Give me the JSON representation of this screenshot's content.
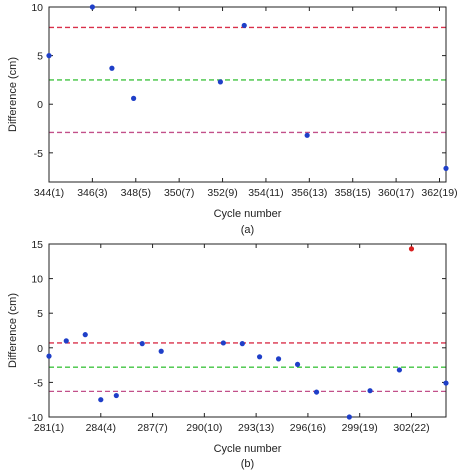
{
  "chart_data": [
    {
      "type": "scatter",
      "caption": "(a)",
      "title": "",
      "xlabel": "Cycle number",
      "ylabel": "Difference (cm)",
      "xlim": [
        344,
        362.3
      ],
      "ylim": [
        -8,
        10
      ],
      "xticks": [
        344,
        346,
        348,
        350,
        352,
        354,
        356,
        358,
        360,
        362
      ],
      "xtick_labels": [
        "344(1)",
        "346(3)",
        "348(5)",
        "350(7)",
        "352(9)",
        "354(11)",
        "356(13)",
        "358(15)",
        "360(17)",
        "362(19)"
      ],
      "yticks": [
        -5,
        0,
        5,
        10
      ],
      "ytick_labels": [
        "-5",
        "0",
        "5",
        "10"
      ],
      "grid": false,
      "reference_lines": [
        {
          "y": 7.9,
          "color": "#d9304a",
          "style": "dashed"
        },
        {
          "y": 2.5,
          "color": "#40c440",
          "style": "dashed"
        },
        {
          "y": -2.9,
          "color": "#c2508a",
          "style": "dashed"
        }
      ],
      "series": [
        {
          "color": "#1f3fc8",
          "points": [
            {
              "x": 344.0,
              "y": 5.0
            },
            {
              "x": 346.0,
              "y": 10.0
            },
            {
              "x": 346.9,
              "y": 3.7
            },
            {
              "x": 347.9,
              "y": 0.6
            },
            {
              "x": 351.9,
              "y": 2.3
            },
            {
              "x": 353.0,
              "y": 8.1
            },
            {
              "x": 355.9,
              "y": -3.2
            },
            {
              "x": 362.3,
              "y": -6.6
            }
          ]
        }
      ]
    },
    {
      "type": "scatter",
      "caption": "(b)",
      "title": "",
      "xlabel": "Cycle number",
      "ylabel": "Difference (cm)",
      "xlim": [
        281,
        304
      ],
      "ylim": [
        -10,
        15
      ],
      "xticks": [
        281,
        284,
        287,
        290,
        293,
        296,
        299,
        302
      ],
      "xtick_labels": [
        "281(1)",
        "284(4)",
        "287(7)",
        "290(10)",
        "293(13)",
        "296(16)",
        "299(19)",
        "302(22)"
      ],
      "yticks": [
        -10,
        -5,
        0,
        5,
        10,
        15
      ],
      "ytick_labels": [
        "-10",
        "-5",
        "0",
        "5",
        "10",
        "15"
      ],
      "grid": false,
      "reference_lines": [
        {
          "y": 0.7,
          "color": "#d9304a",
          "style": "dashed"
        },
        {
          "y": -2.8,
          "color": "#40c440",
          "style": "dashed"
        },
        {
          "y": -6.3,
          "color": "#c2508a",
          "style": "dashed"
        }
      ],
      "series": [
        {
          "color": "#1f3fc8",
          "points": [
            {
              "x": 281.0,
              "y": -1.2
            },
            {
              "x": 282.0,
              "y": 1.0
            },
            {
              "x": 283.1,
              "y": 1.9
            },
            {
              "x": 284.0,
              "y": -7.5
            },
            {
              "x": 284.9,
              "y": -6.9
            },
            {
              "x": 286.4,
              "y": 0.6
            },
            {
              "x": 287.5,
              "y": -0.5
            },
            {
              "x": 291.1,
              "y": 0.7
            },
            {
              "x": 292.2,
              "y": 0.6
            },
            {
              "x": 293.2,
              "y": -1.3
            },
            {
              "x": 294.3,
              "y": -1.6
            },
            {
              "x": 295.4,
              "y": -2.4
            },
            {
              "x": 296.5,
              "y": -6.4
            },
            {
              "x": 298.4,
              "y": -10.0
            },
            {
              "x": 299.6,
              "y": -6.2
            },
            {
              "x": 301.3,
              "y": -3.2
            },
            {
              "x": 304.0,
              "y": -5.1
            }
          ]
        },
        {
          "color": "#d92020",
          "points": [
            {
              "x": 302.0,
              "y": 14.3
            }
          ]
        }
      ]
    }
  ]
}
